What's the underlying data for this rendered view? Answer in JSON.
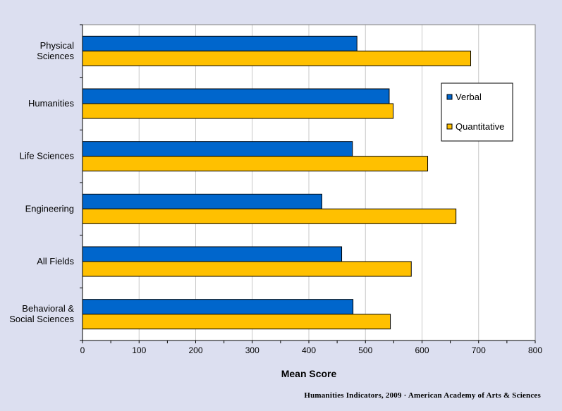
{
  "chart_data": {
    "type": "bar",
    "orientation": "horizontal",
    "categories": [
      "Physical Sciences",
      "Humanities",
      "Life Sciences",
      "Engineering",
      "All Fields",
      "Behavioral & Social Sciences"
    ],
    "category_label_lines": [
      [
        "Physical",
        "Sciences"
      ],
      [
        "Humanities"
      ],
      [
        "Life Sciences"
      ],
      [
        "Engineering"
      ],
      [
        "All Fields"
      ],
      [
        "Behavioral &",
        "Social Sciences"
      ]
    ],
    "series": [
      {
        "name": "Verbal",
        "color": "#0066cc",
        "values": [
          485,
          542,
          477,
          423,
          458,
          478
        ]
      },
      {
        "name": "Quantitative",
        "color": "#ffc000",
        "values": [
          686,
          549,
          610,
          660,
          581,
          544
        ]
      }
    ],
    "xlabel": "Mean Score",
    "xlim": [
      0,
      800
    ],
    "xticks": [
      0,
      100,
      200,
      300,
      400,
      500,
      600,
      700,
      800
    ],
    "grid": "vertical",
    "legend_position": "top-right"
  },
  "credit": "Humanities Indicators, 2009 · American Academy of Arts & Sciences"
}
